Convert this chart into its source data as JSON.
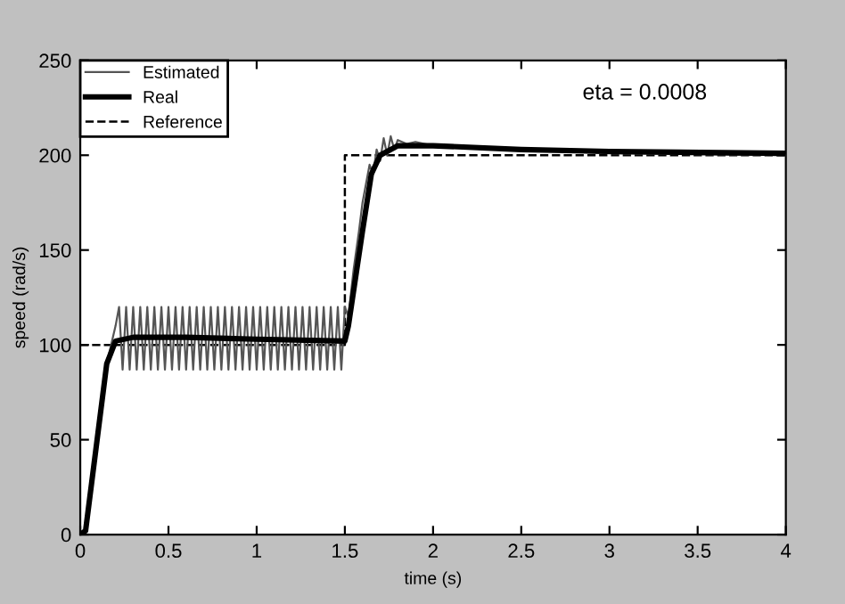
{
  "chart_data": {
    "type": "line",
    "xlabel": "time (s)",
    "ylabel": "speed (rad/s)",
    "xlim": [
      0,
      4
    ],
    "ylim": [
      0,
      250
    ],
    "xticks": [
      0,
      0.5,
      1,
      1.5,
      2,
      2.5,
      3,
      3.5,
      4
    ],
    "yticks": [
      0,
      50,
      100,
      150,
      200,
      250
    ],
    "grid": false,
    "legend": "top left",
    "marker": "none",
    "annotations": [
      "eta = 0.0008"
    ],
    "series": [
      {
        "name": "Estimated",
        "color": "#555555",
        "line_style": "solid",
        "x": [
          0,
          0.03,
          0.15,
          0.2,
          0.22,
          0.24,
          0.26,
          0.28,
          0.3,
          0.32,
          0.34,
          0.36,
          0.38,
          0.4,
          0.42,
          0.44,
          0.46,
          0.48,
          0.5,
          0.52,
          0.54,
          0.56,
          0.58,
          0.6,
          0.62,
          0.64,
          0.66,
          0.68,
          0.7,
          0.72,
          0.74,
          0.76,
          0.78,
          0.8,
          0.82,
          0.84,
          0.86,
          0.88,
          0.9,
          0.92,
          0.94,
          0.96,
          0.98,
          1.0,
          1.02,
          1.04,
          1.06,
          1.08,
          1.1,
          1.12,
          1.14,
          1.16,
          1.18,
          1.2,
          1.22,
          1.24,
          1.26,
          1.28,
          1.3,
          1.32,
          1.34,
          1.36,
          1.38,
          1.4,
          1.42,
          1.44,
          1.46,
          1.48,
          1.5,
          1.52,
          1.55,
          1.58,
          1.6,
          1.62,
          1.64,
          1.66,
          1.68,
          1.7,
          1.72,
          1.74,
          1.76,
          1.78,
          1.8,
          1.85,
          1.9,
          2.0,
          2.5,
          3,
          4
        ],
        "values": [
          0,
          2,
          90,
          110,
          120,
          87,
          120,
          87,
          120,
          87,
          120,
          87,
          120,
          87,
          120,
          87,
          120,
          87,
          120,
          87,
          120,
          87,
          120,
          87,
          120,
          87,
          120,
          87,
          120,
          87,
          120,
          87,
          120,
          87,
          120,
          87,
          120,
          87,
          120,
          87,
          120,
          87,
          120,
          87,
          120,
          87,
          120,
          87,
          120,
          87,
          120,
          87,
          120,
          87,
          120,
          87,
          120,
          87,
          120,
          87,
          120,
          87,
          120,
          87,
          120,
          87,
          120,
          87,
          120,
          115,
          140,
          160,
          175,
          185,
          195,
          190,
          203,
          197,
          209,
          200,
          210,
          203,
          208,
          206,
          207,
          205,
          203,
          201,
          200
        ]
      },
      {
        "name": "Real",
        "color": "#000000",
        "line_style": "solid",
        "x": [
          0,
          0.03,
          0.15,
          0.2,
          0.3,
          0.6,
          1.0,
          1.5,
          1.52,
          1.6,
          1.65,
          1.7,
          1.8,
          2.0,
          2.5,
          3,
          4
        ],
        "values": [
          0,
          2,
          90,
          102,
          104,
          104,
          103,
          102,
          110,
          160,
          190,
          200,
          205,
          205,
          203,
          202,
          201
        ]
      },
      {
        "name": "Reference",
        "color": "#000000",
        "line_style": "dashed",
        "x": [
          0,
          1.5,
          1.5,
          4
        ],
        "values": [
          100,
          100,
          200,
          200
        ]
      }
    ]
  }
}
